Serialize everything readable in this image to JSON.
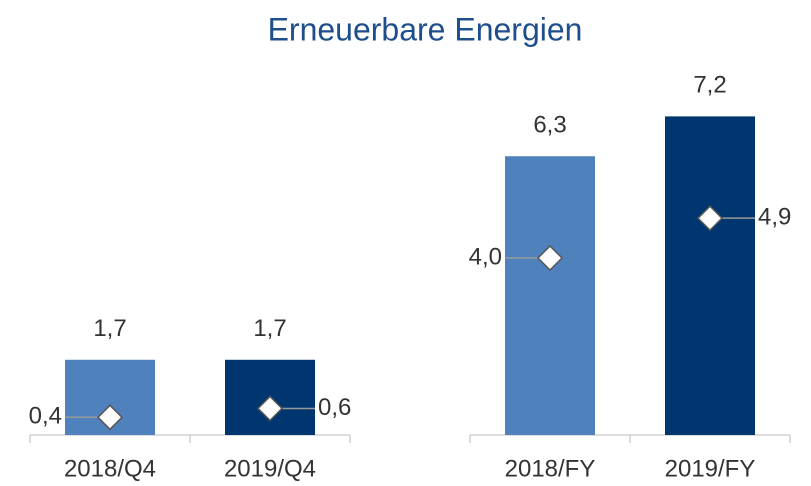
{
  "chart_data": [
    {
      "type": "bar",
      "title": "Erneuerbare Energien",
      "categories": [
        "2018/Q4",
        "2019/Q4"
      ],
      "values": [
        1.7,
        1.7
      ],
      "value_labels": [
        "1,7",
        "1,7"
      ],
      "colors": [
        "#4f81bd",
        "#00366f"
      ],
      "markers": {
        "values": [
          0.4,
          0.6
        ],
        "value_labels": [
          "0,4",
          "0,6"
        ]
      },
      "ylim": [
        0,
        8
      ]
    },
    {
      "type": "bar",
      "categories": [
        "2018/FY",
        "2019/FY"
      ],
      "values": [
        6.3,
        7.2
      ],
      "value_labels": [
        "6,3",
        "7,2"
      ],
      "colors": [
        "#4f81bd",
        "#00366f"
      ],
      "markers": {
        "values": [
          4.0,
          4.9
        ],
        "value_labels": [
          "4,0",
          "4,9"
        ]
      },
      "ylim": [
        0,
        8
      ]
    }
  ]
}
